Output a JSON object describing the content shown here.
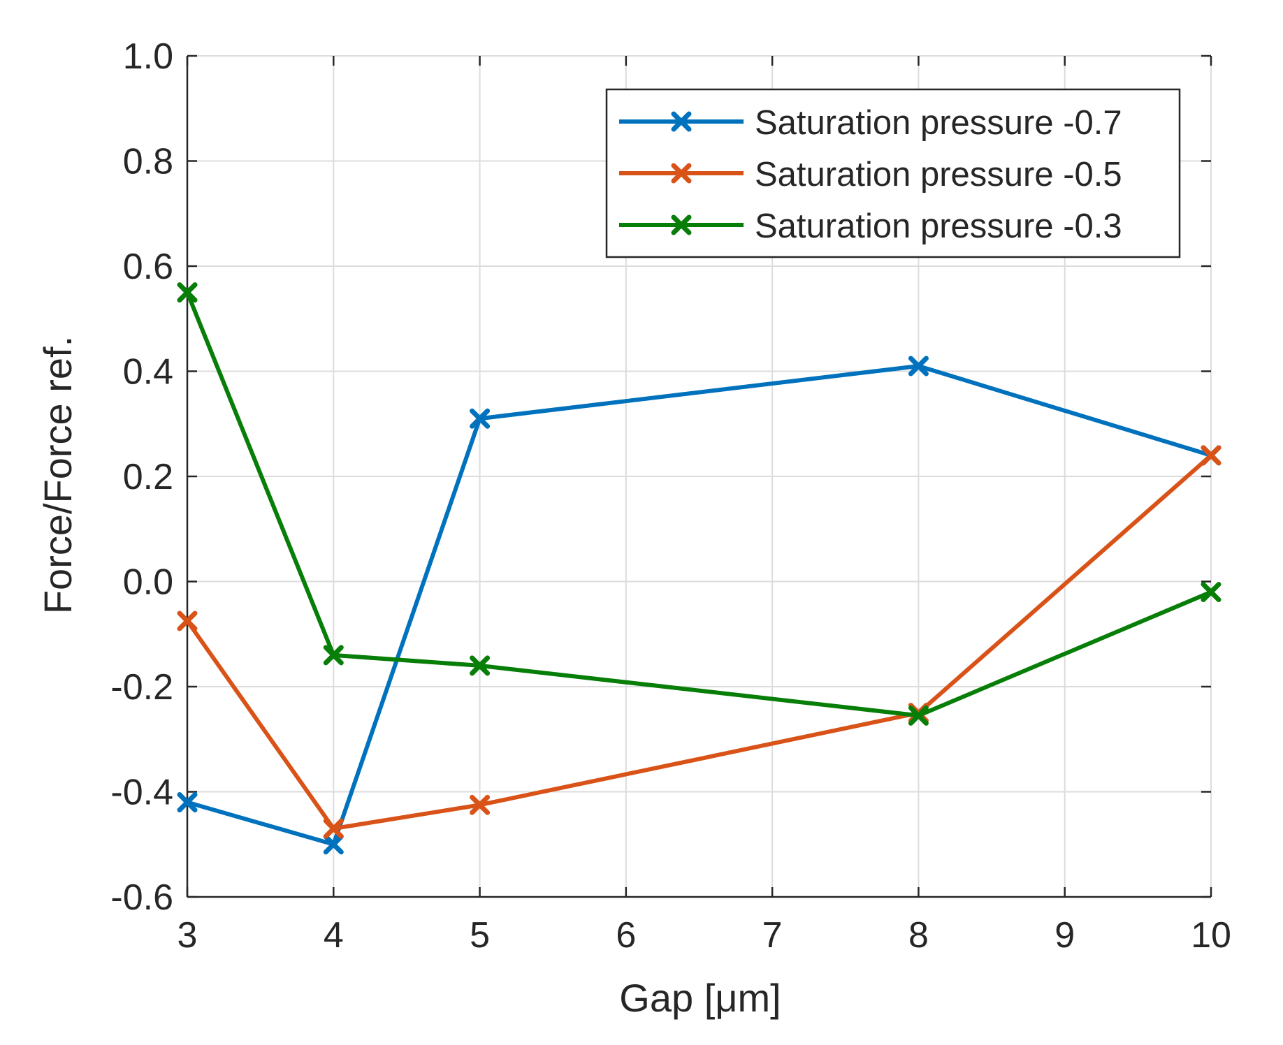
{
  "chart_data": {
    "type": "line",
    "title": "",
    "xlabel": "Gap [μm]",
    "ylabel": "Force/Force ref.",
    "xlim": [
      3,
      10
    ],
    "ylim": [
      -0.6,
      1.0
    ],
    "x_tick_labels": [
      "3",
      "4",
      "5",
      "6",
      "7",
      "8",
      "9",
      "10"
    ],
    "y_tick_labels": [
      "-0.6",
      "-0.4",
      "-0.2",
      "0.0",
      "0.2",
      "0.4",
      "0.6",
      "0.8",
      "1.0"
    ],
    "grid": true,
    "legend_position": "top-right",
    "marker": "x",
    "x": [
      3,
      4,
      5,
      8,
      10
    ],
    "series": [
      {
        "name": "Saturation pressure -0.7",
        "color": "#0072BD",
        "values": [
          -0.42,
          -0.5,
          0.31,
          0.41,
          0.24
        ]
      },
      {
        "name": "Saturation pressure -0.5",
        "color": "#D95319",
        "values": [
          -0.075,
          -0.47,
          -0.425,
          -0.25,
          0.24
        ]
      },
      {
        "name": "Saturation pressure -0.3",
        "color": "#077E07",
        "values": [
          0.55,
          -0.14,
          -0.16,
          -0.255,
          -0.02
        ]
      }
    ]
  }
}
